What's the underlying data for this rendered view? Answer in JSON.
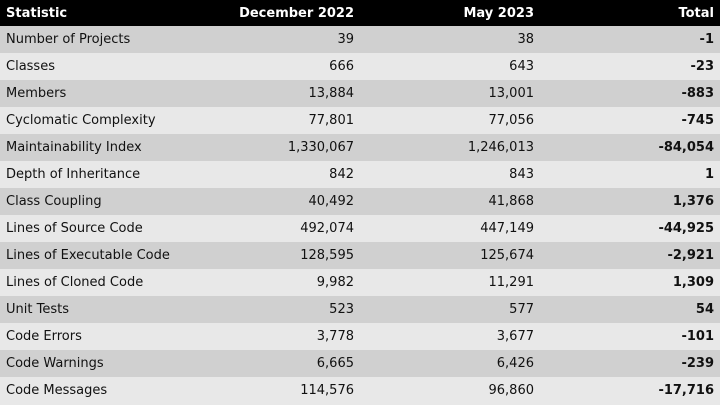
{
  "headers": [
    "Statistic",
    "December 2022",
    "May 2023",
    "Total"
  ],
  "rows": [
    [
      "Number of Projects",
      "39",
      "38",
      "-1"
    ],
    [
      "Classes",
      "666",
      "643",
      "-23"
    ],
    [
      "Members",
      "13,884",
      "13,001",
      "-883"
    ],
    [
      "Cyclomatic Complexity",
      "77,801",
      "77,056",
      "-745"
    ],
    [
      "Maintainability Index",
      "1,330,067",
      "1,246,013",
      "-84,054"
    ],
    [
      "Depth of Inheritance",
      "842",
      "843",
      "1"
    ],
    [
      "Class Coupling",
      "40,492",
      "41,868",
      "1,376"
    ],
    [
      "Lines of Source Code",
      "492,074",
      "447,149",
      "-44,925"
    ],
    [
      "Lines of Executable Code",
      "128,595",
      "125,674",
      "-2,921"
    ],
    [
      "Lines of Cloned Code",
      "9,982",
      "11,291",
      "1,309"
    ],
    [
      "Unit Tests",
      "523",
      "577",
      "54"
    ],
    [
      "Code Errors",
      "3,778",
      "3,677",
      "-101"
    ],
    [
      "Code Warnings",
      "6,665",
      "6,426",
      "-239"
    ],
    [
      "Code Messages",
      "114,576",
      "96,860",
      "-17,716"
    ]
  ]
}
